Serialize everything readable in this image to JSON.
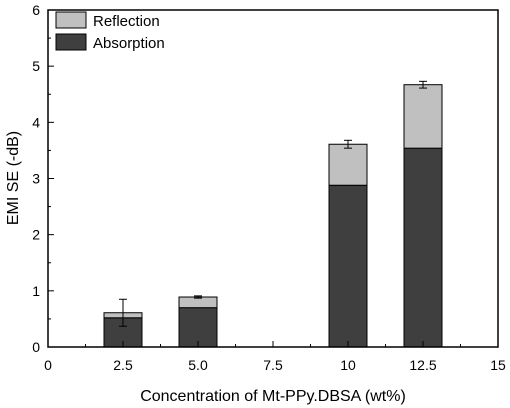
{
  "chart_data": {
    "type": "bar",
    "stacked": true,
    "xlabel": "Concentration of Mt-PPy.DBSA (wt%)",
    "ylabel": "EMI SE (-dB)",
    "xlim": [
      0,
      15
    ],
    "ylim": [
      0,
      6
    ],
    "x_ticks": [
      "0",
      "2.5",
      "5.0",
      "7.5",
      "10",
      "12.5",
      "15"
    ],
    "y_ticks": [
      "0",
      "1",
      "2",
      "3",
      "4",
      "5",
      "6"
    ],
    "grid": false,
    "legend_position": "top-left",
    "x": [
      2.5,
      5.0,
      10,
      12.5
    ],
    "series": [
      {
        "name": "Absorption",
        "color": "#3f3f3f",
        "values": [
          0.52,
          0.7,
          2.88,
          3.54
        ]
      },
      {
        "name": "Reflection",
        "color": "#c0c0c0",
        "values": [
          0.09,
          0.19,
          0.73,
          1.13
        ]
      }
    ],
    "error_bars": [
      0.24,
      0.02,
      0.07,
      0.06
    ],
    "legend": [
      "Reflection",
      "Absorption"
    ]
  }
}
